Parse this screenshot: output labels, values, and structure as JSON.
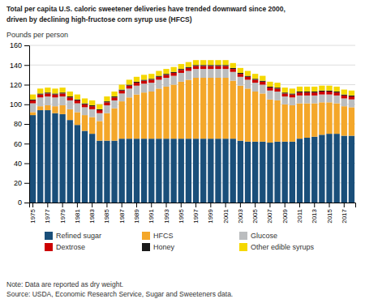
{
  "chart_data": {
    "type": "bar",
    "stacked": true,
    "title": "Total per capita U.S. caloric sweetener deliveries have trended downward since 2000,",
    "subtitle": "driven by declining high-fructose corn syrup use (HFCS)",
    "ylabel": "Pounds per person",
    "categories": [
      "1975",
      null,
      "1977",
      null,
      "1979",
      null,
      "1981",
      null,
      "1983",
      null,
      "1985",
      null,
      "1987",
      null,
      "1989",
      null,
      "1991",
      null,
      "1993",
      null,
      "1995",
      null,
      "1997",
      null,
      "1999",
      null,
      "2001",
      null,
      "2003",
      null,
      "2005",
      null,
      "2007",
      null,
      "2009",
      null,
      "2011",
      null,
      "2013",
      null,
      "2015",
      null,
      "2017",
      null
    ],
    "series": [
      {
        "name": "Refined sugar",
        "color": "#1a4f7a",
        "values": [
          89,
          94,
          94,
          91,
          90,
          84,
          79,
          73,
          70,
          63,
          63,
          63,
          65,
          65,
          65,
          65,
          65,
          65,
          65,
          65,
          65,
          65,
          65,
          65,
          65,
          65,
          65,
          65,
          63,
          62,
          62,
          62,
          61,
          62,
          62,
          62,
          65,
          66,
          67,
          69,
          70,
          70,
          68,
          68
        ]
      },
      {
        "name": "HFCS",
        "color": "#f4a72a",
        "values": [
          3,
          4,
          5,
          7,
          9,
          11,
          13,
          16,
          17,
          20,
          28,
          33,
          38,
          42,
          45,
          47,
          48,
          51,
          53,
          55,
          58,
          60,
          62,
          62,
          62,
          62,
          62,
          59,
          56,
          54,
          51,
          49,
          44,
          42,
          38,
          37,
          36,
          35,
          34,
          33,
          32,
          31,
          30,
          29
        ]
      },
      {
        "name": "Glucose",
        "color": "#bbbdbf",
        "values": [
          9,
          9,
          9,
          9,
          9,
          9,
          9,
          8,
          8,
          8,
          8,
          8,
          8,
          9,
          9,
          9,
          9,
          9,
          9,
          9,
          9,
          9,
          9,
          9,
          9,
          9,
          9,
          9,
          9,
          9,
          9,
          9,
          9,
          9,
          8,
          8,
          8,
          8,
          8,
          8,
          8,
          8,
          8,
          8
        ]
      },
      {
        "name": "Dextrose",
        "color": "#cc0000",
        "values": [
          3,
          3,
          3,
          3,
          3,
          3,
          3,
          3,
          3,
          3,
          3,
          3,
          3,
          3,
          3,
          3,
          3,
          3,
          3,
          3,
          3,
          3,
          3,
          3,
          3,
          3,
          3,
          3,
          3,
          3,
          3,
          3,
          3,
          3,
          3,
          3,
          3,
          3,
          3,
          3,
          3,
          3,
          3,
          3
        ]
      },
      {
        "name": "Honey",
        "color": "#1a1a1a",
        "values": [
          1,
          1,
          1,
          1,
          1,
          1,
          1,
          1,
          1,
          1,
          1,
          1,
          1,
          1,
          1,
          1,
          1,
          1,
          1,
          1,
          1,
          1,
          1,
          1,
          1,
          1,
          1,
          1,
          1,
          1,
          1,
          1,
          1,
          1,
          1,
          1,
          1,
          1,
          1,
          1,
          1,
          1,
          1,
          1
        ]
      },
      {
        "name": "Other edible syrups",
        "color": "#f5d800",
        "values": [
          5,
          5,
          5,
          5,
          5,
          5,
          5,
          5,
          5,
          5,
          5,
          5,
          5,
          5,
          5,
          5,
          5,
          5,
          5,
          5,
          5,
          5,
          5,
          5,
          5,
          5,
          5,
          5,
          5,
          5,
          5,
          5,
          5,
          5,
          5,
          5,
          5,
          5,
          5,
          5,
          5,
          5,
          5,
          5
        ]
      }
    ],
    "ylim": [
      0,
      160
    ],
    "yticks": [
      0,
      20,
      40,
      60,
      80,
      100,
      120,
      140,
      160
    ],
    "grid": true,
    "legend": "bottom",
    "annotations": [
      "Note: Data are reported as dry weight.",
      "Source: USDA, Economic Research Service, Sugar and Sweeteners data."
    ]
  }
}
